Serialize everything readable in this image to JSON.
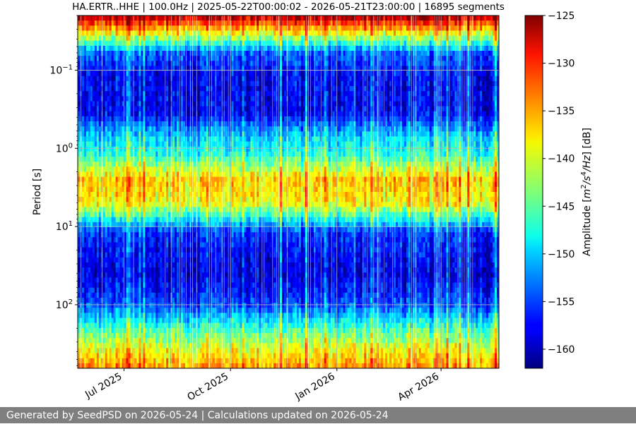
{
  "chart_data": {
    "type": "heatmap",
    "title": "HA.ERTR..HHE | 100.0Hz | 2025-05-22T00:00:02 - 2026-05-21T23:00:00 | 16895 segments",
    "ylabel": "Period [s]",
    "y_scale": "log",
    "y_inverted": true,
    "ylim": [
      0.02,
      650
    ],
    "y_ticks": [
      {
        "value": 0.1,
        "base": "10",
        "exp": "−1"
      },
      {
        "value": 1,
        "base": "10",
        "exp": "0"
      },
      {
        "value": 10,
        "base": "10",
        "exp": "1"
      },
      {
        "value": 100,
        "base": "10",
        "exp": "2"
      }
    ],
    "xlim": [
      "2025-05-22",
      "2026-05-21"
    ],
    "x_ticks": [
      {
        "date": "2025-07-01",
        "label": "Jul 2025"
      },
      {
        "date": "2025-10-01",
        "label": "Oct 2025"
      },
      {
        "date": "2026-01-01",
        "label": "Jan 2026"
      },
      {
        "date": "2026-04-01",
        "label": "Apr 2026"
      }
    ],
    "grid": true,
    "colormap": "jet",
    "colorbar": {
      "label_prefix": "Amplitude [",
      "label_math": "m",
      "label_sup1": "2",
      "label_mid": "/s",
      "label_sup2": "4",
      "label_end": "/Hz",
      "label_suffix": "] [dB]",
      "range": [
        -162,
        -125
      ],
      "ticks": [
        -125,
        -130,
        -135,
        -140,
        -145,
        -150,
        -155,
        -160
      ]
    },
    "amplitude_profile_db": [
      {
        "period": 0.02,
        "value": -126
      },
      {
        "period": 0.035,
        "value": -140
      },
      {
        "period": 0.06,
        "value": -154
      },
      {
        "period": 0.12,
        "value": -158
      },
      {
        "period": 0.35,
        "value": -158
      },
      {
        "period": 0.7,
        "value": -150
      },
      {
        "period": 1.2,
        "value": -147
      },
      {
        "period": 2.5,
        "value": -137
      },
      {
        "period": 5,
        "value": -139
      },
      {
        "period": 8,
        "value": -148
      },
      {
        "period": 12,
        "value": -156
      },
      {
        "period": 40,
        "value": -159
      },
      {
        "period": 100,
        "value": -155
      },
      {
        "period": 200,
        "value": -146
      },
      {
        "period": 400,
        "value": -139
      },
      {
        "period": 650,
        "value": -135
      }
    ]
  },
  "footer": {
    "text": "Generated by SeedPSD on 2026-05-24 | Calculations updated on 2026-05-24"
  }
}
